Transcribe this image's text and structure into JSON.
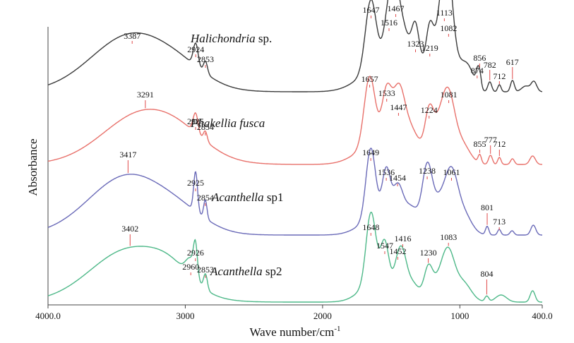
{
  "chart_data": {
    "type": "line",
    "xlabel": "Wave number/cm",
    "xlabel_sup": "-1",
    "ylabel": "Absorbance",
    "xlim": [
      4000,
      400
    ],
    "x_ticks": [
      "4000.0",
      "3000",
      "2000",
      "1000",
      "400.0"
    ],
    "x_tick_values": [
      4000,
      3000,
      2000,
      1000,
      400
    ],
    "grid": false,
    "series": [
      {
        "name_italic": "Halichondria",
        "name_rest": " sp.",
        "color": "#3a3a3a",
        "peaks": [
          {
            "label": "3387",
            "x": 3387
          },
          {
            "label": "2924",
            "x": 2924
          },
          {
            "label": "2853",
            "x": 2853
          },
          {
            "label": "1647",
            "x": 1647
          },
          {
            "label": "1516",
            "x": 1516
          },
          {
            "label": "1467",
            "x": 1467
          },
          {
            "label": "1323",
            "x": 1323
          },
          {
            "label": "1219",
            "x": 1219
          },
          {
            "label": "1113",
            "x": 1113
          },
          {
            "label": "1082",
            "x": 1082
          },
          {
            "label": "874",
            "x": 874
          },
          {
            "label": "856",
            "x": 856
          },
          {
            "label": "782",
            "x": 782
          },
          {
            "label": "712",
            "x": 712
          },
          {
            "label": "617",
            "x": 617
          }
        ]
      },
      {
        "name_italic": "Phakellia fusca",
        "name_rest": "",
        "color": "#e8706a",
        "peaks": [
          {
            "label": "3291",
            "x": 3291
          },
          {
            "label": "2925",
            "x": 2925
          },
          {
            "label": "2854",
            "x": 2854
          },
          {
            "label": "1657",
            "x": 1657
          },
          {
            "label": "1533",
            "x": 1533
          },
          {
            "label": "1447",
            "x": 1447
          },
          {
            "label": "1224",
            "x": 1224
          },
          {
            "label": "1081",
            "x": 1081
          },
          {
            "label": "855",
            "x": 855
          },
          {
            "label": "777",
            "x": 777
          },
          {
            "label": "712",
            "x": 712
          }
        ]
      },
      {
        "name_italic": "Acanthella",
        "name_rest": " sp1",
        "color": "#6a6ab8",
        "peaks": [
          {
            "label": "3417",
            "x": 3417
          },
          {
            "label": "2925",
            "x": 2925
          },
          {
            "label": "2854",
            "x": 2854
          },
          {
            "label": "1649",
            "x": 1649
          },
          {
            "label": "1536",
            "x": 1536
          },
          {
            "label": "1454",
            "x": 1454
          },
          {
            "label": "1238",
            "x": 1238
          },
          {
            "label": "1061",
            "x": 1061
          },
          {
            "label": "801",
            "x": 801
          },
          {
            "label": "713",
            "x": 713
          }
        ]
      },
      {
        "name_italic": "Acanthella",
        "name_rest": " sp2",
        "color": "#4db888",
        "peaks": [
          {
            "label": "3402",
            "x": 3402
          },
          {
            "label": "2960",
            "x": 2960
          },
          {
            "label": "2926",
            "x": 2926
          },
          {
            "label": "2853",
            "x": 2853
          },
          {
            "label": "1648",
            "x": 1648
          },
          {
            "label": "1547",
            "x": 1547
          },
          {
            "label": "1452",
            "x": 1452
          },
          {
            "label": "1416",
            "x": 1416
          },
          {
            "label": "1230",
            "x": 1230
          },
          {
            "label": "1083",
            "x": 1083
          },
          {
            "label": "804",
            "x": 804
          }
        ]
      }
    ]
  }
}
